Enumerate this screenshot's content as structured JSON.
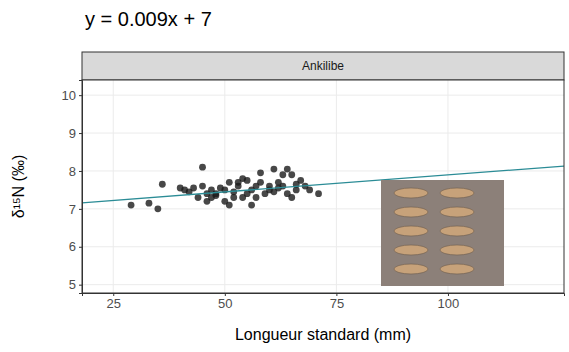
{
  "chart_data": {
    "type": "scatter",
    "title": "y = 0.009x + 7",
    "facet_label": "Ankilibe",
    "x_label": "Longueur standard (mm)",
    "y_label": "δ¹⁵N (‰)",
    "xlim": [
      18,
      126
    ],
    "ylim": [
      4.78,
      10.4
    ],
    "xticks": [
      25,
      50,
      75,
      100
    ],
    "yticks": [
      5,
      6,
      7,
      8,
      9,
      10
    ],
    "grid": true,
    "series": [
      {
        "type": "scatter",
        "marker": "circle",
        "color": "#1a1a1a",
        "x": [
          29,
          33,
          35,
          36,
          40,
          41,
          42,
          43,
          44,
          45,
          45,
          46,
          46,
          47,
          47,
          48,
          48,
          49,
          50,
          50,
          51,
          51,
          52,
          52,
          53,
          53,
          54,
          54,
          55,
          55,
          56,
          56,
          57,
          57,
          58,
          58,
          59,
          60,
          60,
          61,
          61,
          62,
          62,
          63,
          63,
          64,
          64,
          65,
          65,
          66,
          66,
          67,
          68,
          69,
          71
        ],
        "values": [
          7.1,
          7.15,
          7.0,
          7.65,
          7.55,
          7.5,
          7.45,
          7.55,
          7.3,
          7.6,
          8.1,
          7.4,
          7.2,
          7.5,
          7.3,
          7.35,
          7.4,
          7.55,
          7.2,
          7.5,
          7.1,
          7.7,
          7.3,
          7.45,
          7.6,
          7.7,
          7.3,
          7.8,
          7.4,
          7.75,
          7.5,
          7.1,
          7.6,
          7.3,
          7.95,
          7.7,
          7.4,
          7.5,
          7.6,
          8.05,
          7.45,
          7.7,
          7.55,
          7.9,
          7.6,
          8.05,
          7.4,
          7.9,
          7.3,
          7.65,
          7.5,
          7.75,
          7.6,
          7.5,
          7.4
        ]
      },
      {
        "type": "line",
        "line_style": "solid",
        "color": "#2b8c96",
        "x": [
          18,
          126
        ],
        "values": [
          7.16,
          8.13
        ]
      }
    ]
  }
}
